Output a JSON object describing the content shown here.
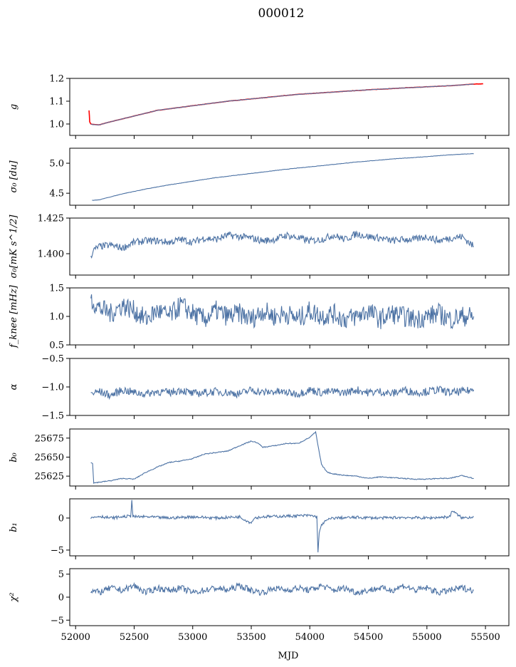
{
  "figure": {
    "title": "000012"
  },
  "chart_data": [
    {
      "type": "line",
      "ylabel": "g",
      "ylim": [
        0.95,
        1.2
      ],
      "yticks": [
        1.0,
        1.1,
        1.2
      ],
      "ytick_labels": [
        "1.0",
        "1.1",
        "1.2"
      ],
      "series": [
        {
          "color": "#ff0000",
          "x": [
            52115,
            52120,
            52130,
            52150,
            52200,
            52300,
            52500,
            52700,
            53000,
            53300,
            53600,
            53900,
            54200,
            54500,
            54800,
            55000,
            55200,
            55400,
            55480
          ],
          "y": [
            1.06,
            1.01,
            1.0,
            0.998,
            0.996,
            1.01,
            1.035,
            1.06,
            1.08,
            1.1,
            1.115,
            1.13,
            1.14,
            1.15,
            1.158,
            1.163,
            1.168,
            1.175,
            1.176
          ]
        },
        {
          "color": "#4c72a4",
          "x": [
            52130,
            52150,
            52200,
            52300,
            52500,
            52700,
            53000,
            53300,
            53600,
            53900,
            54200,
            54500,
            54800,
            55000,
            55200,
            55400
          ],
          "y": [
            1.0,
            0.997,
            0.996,
            1.01,
            1.035,
            1.06,
            1.08,
            1.1,
            1.115,
            1.13,
            1.14,
            1.15,
            1.158,
            1.163,
            1.168,
            1.175
          ]
        }
      ]
    },
    {
      "type": "line",
      "ylabel": "σ₀ [du]",
      "ylim": [
        4.3,
        5.25
      ],
      "yticks": [
        4.5,
        5.0
      ],
      "ytick_labels": [
        "4.5",
        "5.0"
      ],
      "series": [
        {
          "color": "#4c72a4",
          "x": [
            52140,
            52200,
            52300,
            52400,
            52600,
            52800,
            53000,
            53200,
            53500,
            53800,
            54100,
            54400,
            54700,
            55000,
            55200,
            55400
          ],
          "y": [
            4.38,
            4.39,
            4.44,
            4.49,
            4.57,
            4.64,
            4.7,
            4.76,
            4.83,
            4.9,
            4.96,
            5.02,
            5.07,
            5.11,
            5.14,
            5.16
          ]
        }
      ]
    },
    {
      "type": "line",
      "ylabel": "σ₀[mK s^1/2]",
      "ylim": [
        1.385,
        1.425
      ],
      "yticks": [
        1.4,
        1.425
      ],
      "ytick_labels": [
        "1.400",
        "1.425"
      ],
      "series": [
        {
          "color": "#4c72a4",
          "x": [
            52130,
            52150,
            52200,
            52300,
            52400,
            52500,
            52600,
            52700,
            52800,
            52900,
            53000,
            53100,
            53200,
            53300,
            53400,
            53500,
            53600,
            53700,
            53800,
            53900,
            54000,
            54100,
            54200,
            54300,
            54400,
            54500,
            54600,
            54700,
            54800,
            54900,
            55000,
            55100,
            55200,
            55300,
            55400
          ],
          "y": [
            1.398,
            1.402,
            1.405,
            1.406,
            1.404,
            1.408,
            1.409,
            1.409,
            1.408,
            1.41,
            1.408,
            1.411,
            1.41,
            1.413,
            1.412,
            1.411,
            1.409,
            1.41,
            1.413,
            1.411,
            1.409,
            1.41,
            1.413,
            1.41,
            1.414,
            1.412,
            1.411,
            1.409,
            1.41,
            1.41,
            1.412,
            1.409,
            1.411,
            1.412,
            1.405
          ]
        }
      ]
    },
    {
      "type": "line",
      "ylabel": "f_knee [mHz]",
      "ylim": [
        0.5,
        1.5
      ],
      "yticks": [
        0.5,
        1.0,
        1.5
      ],
      "ytick_labels": [
        "0.5",
        "1.0",
        "1.5"
      ],
      "series": [
        {
          "color": "#4c72a4",
          "x": [
            52130,
            52200,
            52300,
            52400,
            52500,
            52600,
            52700,
            52800,
            52900,
            53000,
            53100,
            53200,
            53300,
            53400,
            53500,
            53600,
            53700,
            53800,
            53900,
            54000,
            54100,
            54200,
            54300,
            54400,
            54500,
            54600,
            54700,
            54800,
            54900,
            55000,
            55100,
            55200,
            55300,
            55400
          ],
          "y": [
            1.3,
            1.15,
            1.05,
            1.2,
            1.1,
            0.95,
            1.1,
            1.0,
            1.2,
            1.05,
            0.95,
            1.1,
            1.0,
            1.05,
            0.95,
            1.1,
            1.0,
            1.05,
            0.95,
            1.1,
            1.0,
            1.05,
            0.95,
            1.0,
            1.1,
            0.95,
            1.05,
            1.0,
            0.95,
            1.0,
            1.05,
            0.95,
            1.0,
            1.0
          ]
        }
      ]
    },
    {
      "type": "line",
      "ylabel": "α",
      "ylim": [
        -1.5,
        -0.5
      ],
      "yticks": [
        -1.5,
        -1.0,
        -0.5
      ],
      "ytick_labels": [
        "−1.5",
        "−1.0",
        "−0.5"
      ],
      "series": [
        {
          "color": "#4c72a4",
          "x": [
            52130,
            52200,
            52300,
            52400,
            52500,
            52600,
            52700,
            52800,
            52900,
            53000,
            53100,
            53200,
            53300,
            53400,
            53500,
            53600,
            53700,
            53800,
            53900,
            54000,
            54100,
            54200,
            54300,
            54400,
            54500,
            54600,
            54700,
            54800,
            54900,
            55000,
            55100,
            55200,
            55300,
            55400
          ],
          "y": [
            -1.12,
            -1.08,
            -1.15,
            -1.05,
            -1.1,
            -1.12,
            -1.08,
            -1.1,
            -1.05,
            -1.12,
            -1.1,
            -1.08,
            -1.1,
            -1.12,
            -1.05,
            -1.1,
            -1.08,
            -1.1,
            -1.12,
            -1.05,
            -1.1,
            -1.08,
            -1.1,
            -1.05,
            -1.1,
            -1.08,
            -1.12,
            -1.05,
            -1.1,
            -1.08,
            -1.05,
            -1.1,
            -1.08,
            -1.05
          ]
        }
      ]
    },
    {
      "type": "line",
      "ylabel": "b₀",
      "ylim": [
        25612,
        25687
      ],
      "yticks": [
        25625,
        25650,
        25675
      ],
      "ytick_labels": [
        "25625",
        "25650",
        "25675"
      ],
      "series": [
        {
          "color": "#4c72a4",
          "x": [
            52130,
            52145,
            52155,
            52200,
            52300,
            52400,
            52500,
            52600,
            52700,
            52800,
            52900,
            53000,
            53100,
            53200,
            53300,
            53400,
            53500,
            53550,
            53600,
            53700,
            53800,
            53900,
            54000,
            54050,
            54070,
            54100,
            54150,
            54200,
            54300,
            54400,
            54500,
            54600,
            54700,
            54800,
            54900,
            55000,
            55100,
            55200,
            55300,
            55400
          ],
          "y": [
            25643,
            25642,
            25616,
            25617,
            25619,
            25622,
            25621,
            25630,
            25637,
            25643,
            25645,
            25648,
            25654,
            25656,
            25658,
            25665,
            25671,
            25669,
            25663,
            25665,
            25668,
            25668,
            25676,
            25683,
            25665,
            25640,
            25630,
            25628,
            25626,
            25625,
            25622,
            25624,
            25623,
            25622,
            25621,
            25621,
            25622,
            25622,
            25626,
            25622
          ]
        }
      ]
    },
    {
      "type": "line",
      "ylabel": "b₁",
      "ylim": [
        -5.9,
        3.0
      ],
      "yticks": [
        -5,
        0
      ],
      "ytick_labels": [
        "−5",
        "0"
      ],
      "series": [
        {
          "color": "#4c72a4",
          "x": [
            52130,
            52200,
            52300,
            52400,
            52470,
            52480,
            52490,
            52600,
            52800,
            53000,
            53200,
            53400,
            53500,
            53520,
            53600,
            53800,
            54000,
            54060,
            54070,
            54080,
            54100,
            54150,
            54200,
            54400,
            54600,
            54800,
            55000,
            55200,
            55210,
            55300,
            55400
          ],
          "y": [
            0.0,
            0.3,
            0.0,
            0.2,
            0.3,
            2.8,
            0.2,
            0.2,
            0.0,
            0.2,
            0.0,
            0.2,
            -0.8,
            0.0,
            0.2,
            0.3,
            0.4,
            0.2,
            -5.3,
            -2.5,
            -1.0,
            -0.3,
            0.0,
            0.1,
            0.0,
            0.1,
            0.0,
            0.2,
            1.2,
            0.0,
            0.2
          ]
        }
      ]
    },
    {
      "type": "line",
      "ylabel": "χ²",
      "ylim": [
        -6.2,
        6.2
      ],
      "yticks": [
        -5,
        0,
        5
      ],
      "ytick_labels": [
        "−5",
        "0",
        "5"
      ],
      "series": [
        {
          "color": "#4c72a4",
          "x": [
            52130,
            52200,
            52300,
            52400,
            52500,
            52600,
            52700,
            52800,
            52900,
            53000,
            53100,
            53200,
            53300,
            53400,
            53500,
            53600,
            53700,
            53800,
            53900,
            54000,
            54100,
            54200,
            54300,
            54400,
            54500,
            54600,
            54700,
            54800,
            54900,
            55000,
            55100,
            55200,
            55300,
            55400
          ],
          "y": [
            1.5,
            1.0,
            2.0,
            1.5,
            2.5,
            1.0,
            2.0,
            1.5,
            2.0,
            1.0,
            1.5,
            2.0,
            1.5,
            2.5,
            1.5,
            1.0,
            2.0,
            1.5,
            2.0,
            1.5,
            2.5,
            1.5,
            2.0,
            1.0,
            1.5,
            2.0,
            1.5,
            2.5,
            1.5,
            2.0,
            1.0,
            1.5,
            2.0,
            1.5
          ]
        }
      ]
    }
  ],
  "xaxis": {
    "label": "MJD",
    "xlim": [
      51950,
      55700
    ],
    "ticks": [
      52000,
      52500,
      53000,
      53500,
      54000,
      54500,
      55000,
      55500
    ],
    "tick_labels": [
      "52000",
      "52500",
      "53000",
      "53500",
      "54000",
      "54500",
      "55000",
      "55500"
    ]
  }
}
